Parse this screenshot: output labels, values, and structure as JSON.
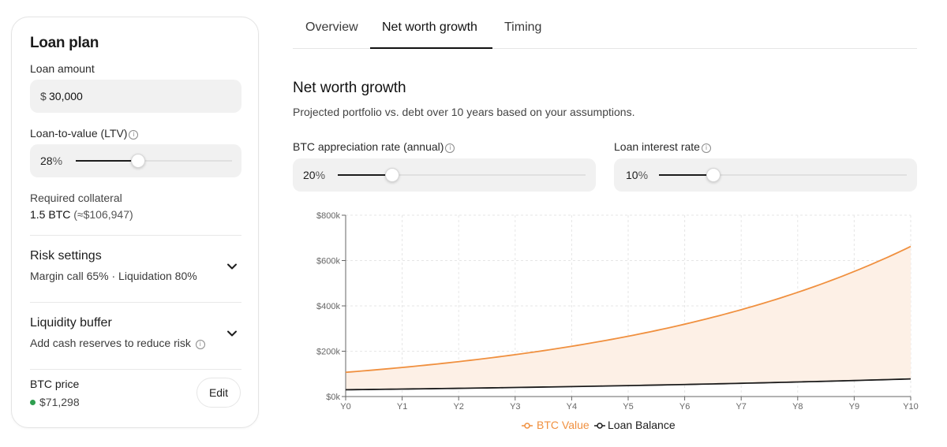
{
  "loan_plan": {
    "title": "Loan plan",
    "loan_amount_label": "Loan amount",
    "currency_symbol": "$",
    "loan_amount_value": "30,000",
    "ltv_label": "Loan-to-value (LTV)",
    "ltv_value": "28",
    "ltv_unit": "%",
    "ltv_slider_level": 0.4,
    "required_collateral_label": "Required collateral",
    "required_collateral_btc": "1.5 BTC",
    "required_collateral_usd": "(≈$106,947)",
    "risk_settings_title": "Risk settings",
    "risk_settings_sub": "Margin call 65% · Liquidation 80%",
    "liquidity_buffer_title": "Liquidity buffer",
    "liquidity_buffer_sub": "Add cash reserves to reduce risk",
    "btc_price_label": "BTC price",
    "btc_price_value": "$71,298",
    "edit_label": "Edit",
    "status_color": "#2e9e4f"
  },
  "tabs": [
    {
      "label": "Overview",
      "active": false
    },
    {
      "label": "Net worth growth",
      "active": true
    },
    {
      "label": "Timing",
      "active": false
    }
  ],
  "section": {
    "title": "Net worth growth",
    "subtitle": "Projected portfolio vs. debt over 10 years based on your assumptions."
  },
  "controls": {
    "btc_rate_label": "BTC appreciation rate (annual)",
    "btc_rate_value": "20",
    "btc_rate_unit": "%",
    "btc_rate_slider_level": 0.22,
    "loan_rate_label": "Loan interest rate",
    "loan_rate_value": "10",
    "loan_rate_unit": "%",
    "loan_rate_slider_level": 0.22
  },
  "colors": {
    "accent": "#f0903f",
    "loan_line": "#1c1c1c",
    "fill": "#fdf0e6"
  },
  "chart_data": {
    "type": "line",
    "x": [
      "Y0",
      "Y1",
      "Y2",
      "Y3",
      "Y4",
      "Y5",
      "Y6",
      "Y7",
      "Y8",
      "Y9",
      "Y10"
    ],
    "yticks": [
      "$0k",
      "$200k",
      "$400k",
      "$600k",
      "$800k"
    ],
    "ylim": [
      0,
      800000
    ],
    "grid": true,
    "legend_position": "bottom-center",
    "series": [
      {
        "name": "BTC Value",
        "values": [
          106947,
          128336,
          154004,
          184804,
          221765,
          266118,
          319342,
          383210,
          459852,
          551823,
          662187
        ]
      },
      {
        "name": "Loan Balance",
        "values": [
          30000,
          33000,
          36300,
          39930,
          43923,
          48315,
          53147,
          58462,
          64308,
          70738,
          77812
        ]
      }
    ]
  }
}
